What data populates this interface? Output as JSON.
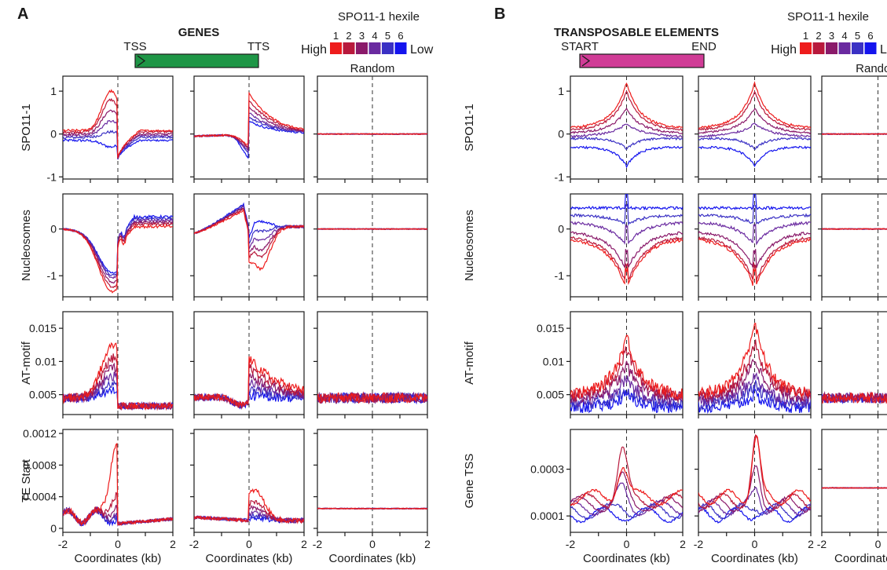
{
  "hexile_colors": [
    "#ee1c1c",
    "#b8193c",
    "#8a1a6a",
    "#6a2aa0",
    "#3a30c4",
    "#1414ee"
  ],
  "chart_data": {
    "type": "line",
    "panels": [
      {
        "letter": "A",
        "title": "GENES",
        "feature_start": "TSS",
        "feature_end": "TTS",
        "feature_color": "#1e9646",
        "legend": {
          "title": "SPO11-1 hexile",
          "high": "High",
          "low": "Low",
          "numbers": [
            "1",
            "2",
            "3",
            "4",
            "5",
            "6"
          ]
        },
        "column_titles": [
          "",
          "",
          "Random"
        ],
        "xlabel": "Coordinates (kb)",
        "xticks": [
          "-2",
          "0",
          "2"
        ],
        "xlim": [
          -2,
          2
        ],
        "rows": [
          {
            "ylabel": "SPO11-1",
            "ylim": [
              -1.05,
              1.35
            ],
            "ytick_values": [
              1,
              0,
              -1
            ],
            "ytick_labels": [
              "1",
              "0",
              "-1"
            ],
            "columns": [
              {
                "shape": "tss_dip",
                "series_peak": [
                  1.0,
                  0.8,
                  0.55,
                  0.3,
                  0.05,
                  -0.3
                ],
                "series_base": [
                  0.08,
                  0.05,
                  0.0,
                  -0.04,
                  -0.08,
                  -0.15
                ],
                "post_dip": -0.58
              },
              {
                "shape": "tts_rise",
                "series_peak": [
                  0.95,
                  0.8,
                  0.65,
                  0.5,
                  0.4,
                  0.3
                ],
                "series_trough": [
                  -0.25,
                  -0.3,
                  -0.35,
                  -0.4,
                  -0.45,
                  -0.55
                ]
              },
              {
                "shape": "flat",
                "value": 0.0
              }
            ]
          },
          {
            "ylabel": "Nucleosomes",
            "ylim": [
              -1.45,
              0.75
            ],
            "ytick_values": [
              0,
              -1
            ],
            "ytick_labels": [
              "0",
              "-1"
            ],
            "columns": [
              {
                "shape": "tss_valley",
                "series_min": [
                  -1.25,
                  -1.15,
                  -1.05,
                  -0.95,
                  -0.9,
                  -0.85
                ],
                "series_right": [
                  0.05,
                  0.1,
                  0.14,
                  0.18,
                  0.22,
                  0.26
                ]
              },
              {
                "shape": "tts_drop",
                "series_peak": [
                  0.45,
                  0.5,
                  0.52,
                  0.55,
                  0.58,
                  0.6
                ],
                "series_after": [
                  -0.85,
                  -0.6,
                  -0.45,
                  -0.25,
                  -0.05,
                  0.15
                ]
              },
              {
                "shape": "flat",
                "value": 0.0
              }
            ]
          },
          {
            "ylabel": "AT-motif",
            "ylim": [
              0.002,
              0.0175
            ],
            "ytick_values": [
              0.015,
              0.01,
              0.005
            ],
            "ytick_labels": [
              "0.015",
              "0.01",
              "0.005"
            ],
            "columns": [
              {
                "shape": "at_genes_left",
                "series_peak": [
                  0.0125,
                  0.0105,
                  0.009,
                  0.0078,
                  0.0065,
                  0.0056
                ]
              },
              {
                "shape": "at_genes_right",
                "series_peak": [
                  0.0105,
                  0.0093,
                  0.008,
                  0.0068,
                  0.0058,
                  0.0048
                ]
              },
              {
                "shape": "flat_noise",
                "value": 0.0045
              }
            ]
          },
          {
            "ylabel": "TE Start",
            "ylim": [
              -5e-05,
              0.00125
            ],
            "ytick_values": [
              0.0012,
              0.0008,
              0.0004,
              0
            ],
            "ytick_labels": [
              "0.0012",
              "0.0008",
              "0.0004",
              "0"
            ],
            "columns": [
              {
                "shape": "te_spike",
                "series_peak": [
                  0.0011,
                  0.00045,
                  0.0003,
                  0.00022,
                  0.00018,
                  0.00014
                ]
              },
              {
                "shape": "te_bump",
                "series_peak": [
                  0.00048,
                  0.00034,
                  0.00026,
                  0.0002,
                  0.00016,
                  0.00013
                ]
              },
              {
                "shape": "flat",
                "value": 0.00025
              }
            ]
          }
        ]
      },
      {
        "letter": "B",
        "title": "TRANSPOSABLE ELEMENTS",
        "feature_start": "START",
        "feature_end": "END",
        "feature_color": "#d03c96",
        "legend": {
          "title": "SPO11-1 hexile",
          "high": "High",
          "low": "Low",
          "numbers": [
            "1",
            "2",
            "3",
            "4",
            "5",
            "6"
          ]
        },
        "column_titles": [
          "",
          "",
          "Random"
        ],
        "xlabel": "Coordinates (kb)",
        "xticks": [
          "-2",
          "0",
          "2"
        ],
        "xlim": [
          -2,
          2
        ],
        "rows": [
          {
            "ylabel": "SPO11-1",
            "ylim": [
              -1.05,
              1.35
            ],
            "ytick_values": [
              1,
              0,
              -1
            ],
            "ytick_labels": [
              "1",
              "0",
              "-1"
            ],
            "columns": [
              {
                "shape": "te_cusp",
                "series_peak": [
                  1.2,
                  1.0,
                  0.6,
                  0.25,
                  -0.35,
                  -0.75
                ],
                "series_base": [
                  0.2,
                  0.15,
                  0.08,
                  0.0,
                  -0.05,
                  -0.25
                ]
              },
              {
                "shape": "te_cusp",
                "series_peak": [
                  1.2,
                  1.0,
                  0.6,
                  0.25,
                  -0.35,
                  -0.75
                ],
                "series_base": [
                  0.2,
                  0.15,
                  0.08,
                  0.0,
                  -0.05,
                  -0.25
                ]
              },
              {
                "shape": "flat",
                "value": 0.0
              }
            ]
          },
          {
            "ylabel": "Nucleosomes",
            "ylim": [
              -1.45,
              0.75
            ],
            "ytick_values": [
              0,
              -1
            ],
            "ytick_labels": [
              "0",
              "-1"
            ],
            "columns": [
              {
                "shape": "te_valley",
                "series_min": [
                  -1.3,
                  -1.2,
                  -0.9,
                  -0.35,
                  0.1,
                  0.45
                ],
                "series_base": [
                  -0.2,
                  -0.15,
                  -0.05,
                  0.15,
                  0.3,
                  0.45
                ]
              },
              {
                "shape": "te_valley",
                "series_min": [
                  -1.3,
                  -1.2,
                  -0.9,
                  -0.35,
                  0.1,
                  0.45
                ],
                "series_base": [
                  -0.2,
                  -0.15,
                  -0.05,
                  0.15,
                  0.3,
                  0.45
                ]
              },
              {
                "shape": "flat",
                "value": 0.0
              }
            ]
          },
          {
            "ylabel": "AT-motif",
            "ylim": [
              0.002,
              0.0175
            ],
            "ytick_values": [
              0.015,
              0.01,
              0.005
            ],
            "ytick_labels": [
              "0.015",
              "0.01",
              "0.005"
            ],
            "columns": [
              {
                "shape": "te_at",
                "series_peak": [
                  0.014,
                  0.012,
                  0.0095,
                  0.0075,
                  0.006,
                  0.005
                ],
                "series_base": [
                  0.005,
                  0.0048,
                  0.0045,
                  0.004,
                  0.0035,
                  0.003
                ]
              },
              {
                "shape": "te_at",
                "series_peak": [
                  0.016,
                  0.013,
                  0.0105,
                  0.008,
                  0.0065,
                  0.005
                ],
                "series_base": [
                  0.005,
                  0.0048,
                  0.0045,
                  0.004,
                  0.0035,
                  0.003
                ]
              },
              {
                "shape": "flat_noise",
                "value": 0.0045
              }
            ]
          },
          {
            "ylabel": "Gene TSS",
            "ylim": [
              3e-05,
              0.00047
            ],
            "ytick_values": [
              0.0003,
              0.0001
            ],
            "ytick_labels": [
              "0.0003",
              "0.0001"
            ],
            "columns": [
              {
                "shape": "gene_tss_left",
                "series_peak": [
                  0.00032,
                  0.00038,
                  0.00026,
                  0.00022,
                  0.00014,
                  0.00011
                ]
              },
              {
                "shape": "gene_tss_right",
                "series_peak": [
                  0.00043,
                  0.00042,
                  0.00029,
                  0.00022,
                  0.00015,
                  0.00012
                ]
              },
              {
                "shape": "flat",
                "value": 0.00022
              }
            ]
          }
        ]
      }
    ]
  }
}
